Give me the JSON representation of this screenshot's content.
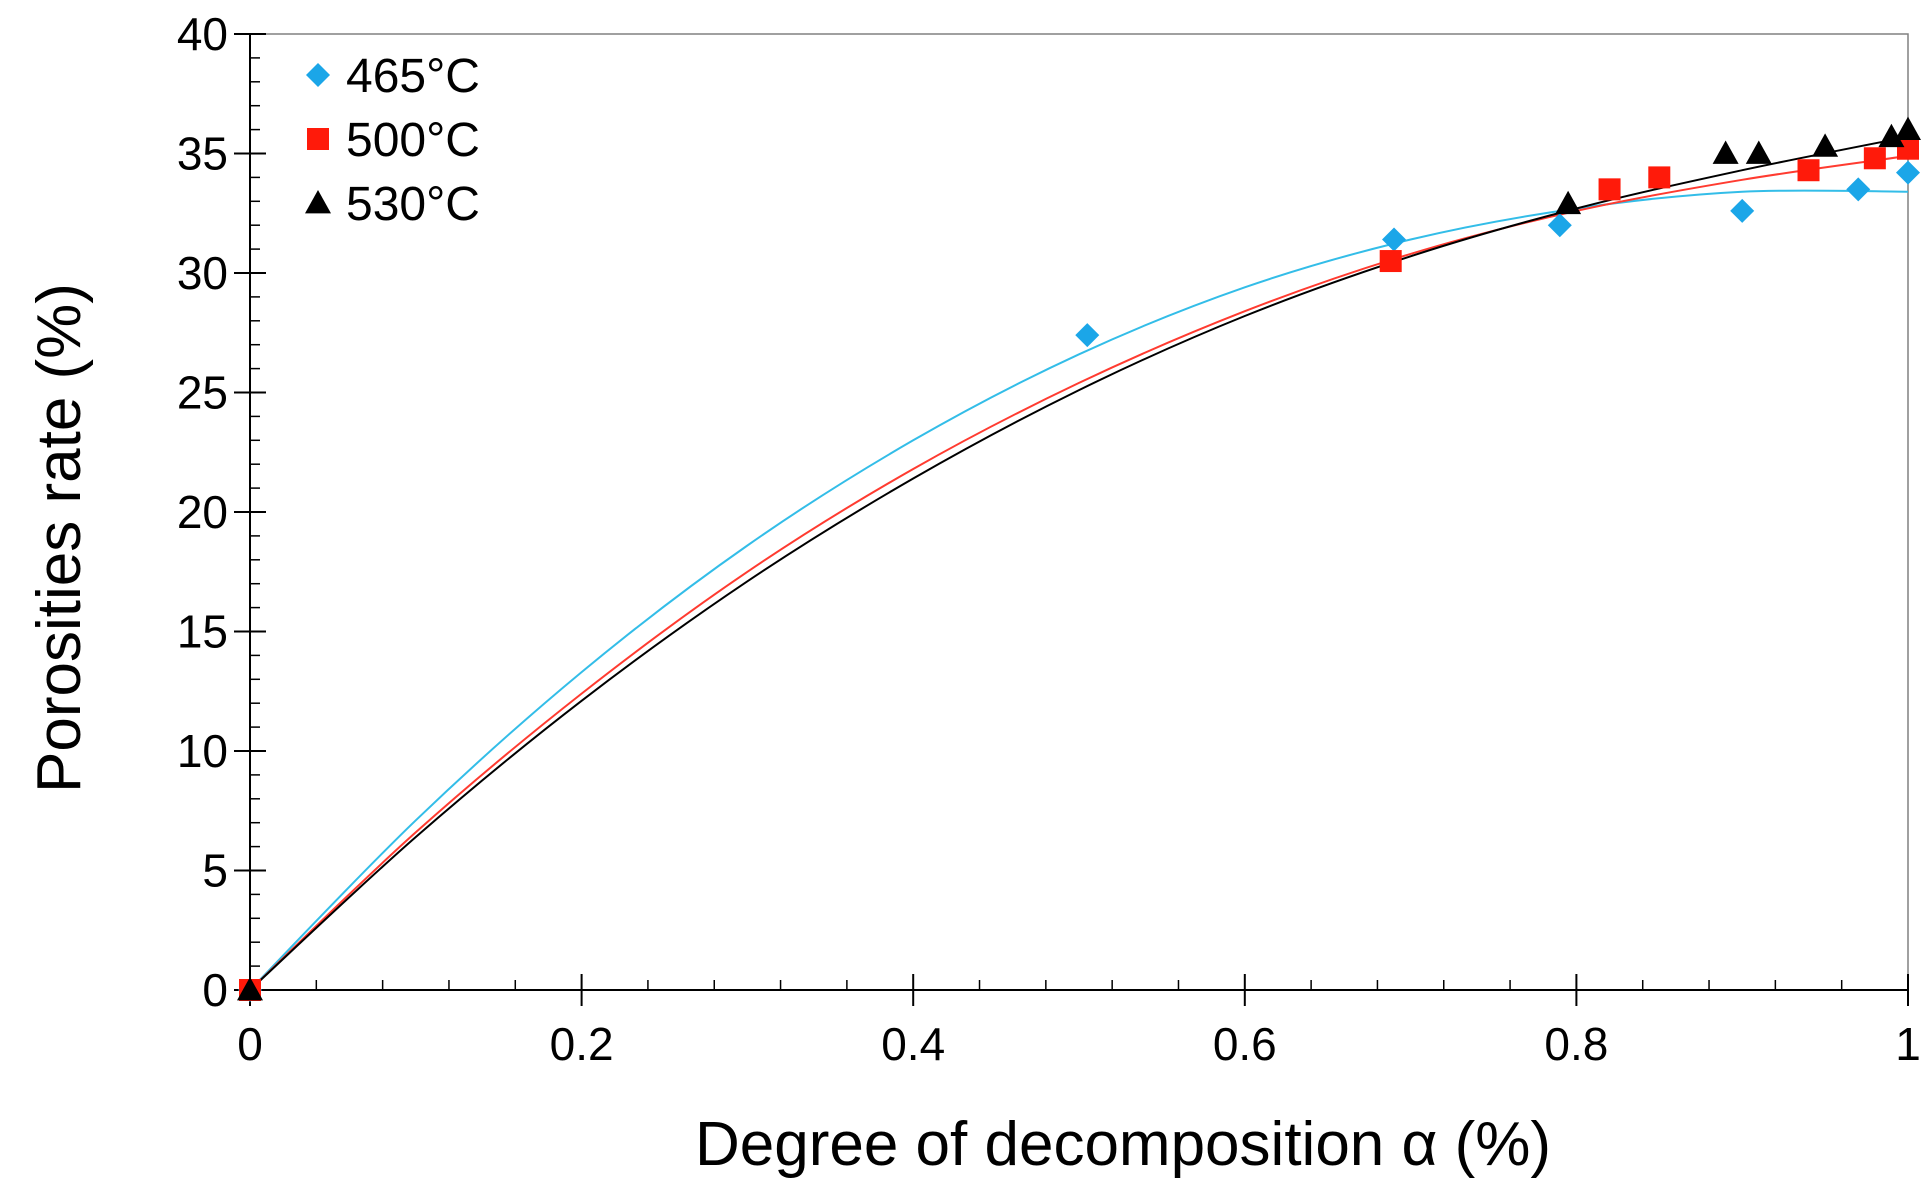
{
  "chart_data": {
    "type": "scatter",
    "title": "",
    "xlabel": "Degree of decomposition α (%)",
    "ylabel": "Porosities rate  (%)",
    "xlim": [
      0,
      1
    ],
    "ylim": [
      0,
      40
    ],
    "x_ticks": [
      0,
      0.2,
      0.4,
      0.6,
      0.8,
      1
    ],
    "x_tick_labels": [
      "0",
      "0.2",
      "0.4",
      "0.6",
      "0.8",
      "1"
    ],
    "y_ticks": [
      0,
      5,
      10,
      15,
      20,
      25,
      30,
      35,
      40
    ],
    "y_tick_labels": [
      "0",
      "5",
      "10",
      "15",
      "20",
      "25",
      "30",
      "35",
      "40"
    ],
    "grid": false,
    "legend_position": "top-left",
    "series": [
      {
        "name": "465°C",
        "marker": "diamond",
        "color": "#1ba6e8",
        "fit_color": "#33bde8",
        "points": [
          [
            0,
            0
          ],
          [
            0.505,
            27.4
          ],
          [
            0.69,
            31.4
          ],
          [
            0.79,
            32.0
          ],
          [
            0.9,
            32.6
          ],
          [
            0.97,
            33.5
          ],
          [
            1.0,
            34.2
          ]
        ],
        "fit_curve": [
          [
            0,
            0
          ],
          [
            0.1,
            7.1
          ],
          [
            0.2,
            13.3
          ],
          [
            0.3,
            18.6
          ],
          [
            0.4,
            23.0
          ],
          [
            0.5,
            26.6
          ],
          [
            0.6,
            29.4
          ],
          [
            0.7,
            31.4
          ],
          [
            0.8,
            32.7
          ],
          [
            0.9,
            33.4
          ],
          [
            1.0,
            33.4
          ]
        ]
      },
      {
        "name": "500°C",
        "marker": "square",
        "color": "#ff1a0a",
        "fit_color": "#ff3b30",
        "points": [
          [
            0,
            0
          ],
          [
            0.688,
            30.5
          ],
          [
            0.82,
            33.5
          ],
          [
            0.85,
            34.0
          ],
          [
            0.94,
            34.3
          ],
          [
            0.98,
            34.8
          ],
          [
            1.0,
            35.2
          ]
        ],
        "fit_curve": [
          [
            0,
            0
          ],
          [
            0.1,
            6.6
          ],
          [
            0.2,
            12.4
          ],
          [
            0.3,
            17.5
          ],
          [
            0.4,
            21.8
          ],
          [
            0.5,
            25.4
          ],
          [
            0.6,
            28.4
          ],
          [
            0.7,
            30.8
          ],
          [
            0.8,
            32.6
          ],
          [
            0.9,
            33.9
          ],
          [
            1.0,
            34.9
          ]
        ]
      },
      {
        "name": "530°C",
        "marker": "triangle",
        "color": "#000000",
        "fit_color": "#000000",
        "points": [
          [
            0,
            0
          ],
          [
            0.795,
            32.9
          ],
          [
            0.89,
            35.0
          ],
          [
            0.91,
            35.0
          ],
          [
            0.95,
            35.3
          ],
          [
            0.99,
            35.7
          ],
          [
            1.0,
            36.0
          ]
        ],
        "fit_curve": [
          [
            0,
            0
          ],
          [
            0.1,
            6.4
          ],
          [
            0.2,
            12.1
          ],
          [
            0.3,
            17.1
          ],
          [
            0.4,
            21.4
          ],
          [
            0.5,
            25.1
          ],
          [
            0.6,
            28.2
          ],
          [
            0.7,
            30.7
          ],
          [
            0.8,
            32.7
          ],
          [
            0.9,
            34.3
          ],
          [
            1.0,
            35.7
          ]
        ]
      }
    ]
  }
}
